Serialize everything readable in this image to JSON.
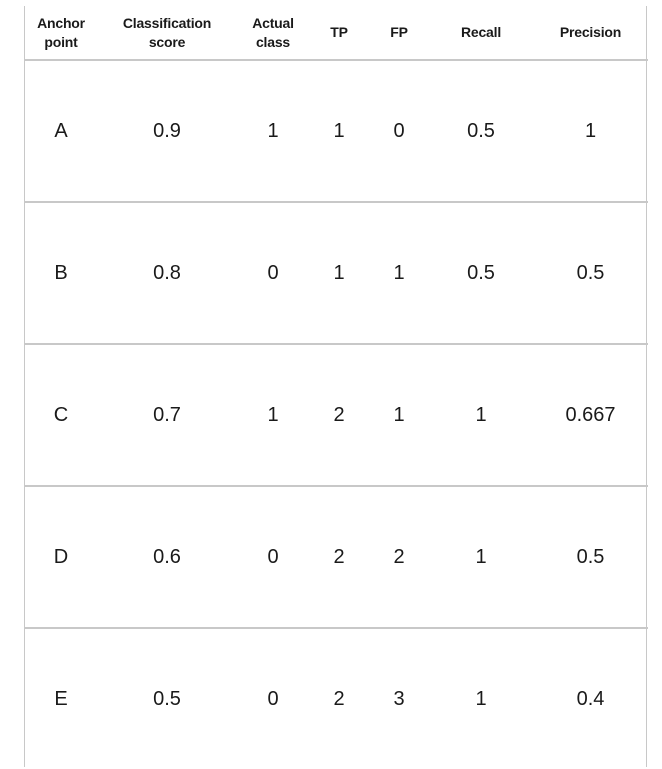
{
  "table": {
    "headers": [
      {
        "line1": "Anchor",
        "line2": "point"
      },
      {
        "line1": "Classification",
        "line2": "score"
      },
      {
        "line1": "Actual",
        "line2": "class"
      },
      {
        "line1": "TP",
        "line2": ""
      },
      {
        "line1": "FP",
        "line2": ""
      },
      {
        "line1": "Recall",
        "line2": ""
      },
      {
        "line1": "Precision",
        "line2": ""
      }
    ],
    "rows": [
      [
        "A",
        "0.9",
        "1",
        "1",
        "0",
        "0.5",
        "1"
      ],
      [
        "B",
        "0.8",
        "0",
        "1",
        "1",
        "0.5",
        "0.5"
      ],
      [
        "C",
        "0.7",
        "1",
        "2",
        "1",
        "1",
        "0.667"
      ],
      [
        "D",
        "0.6",
        "0",
        "2",
        "2",
        "1",
        "0.5"
      ],
      [
        "E",
        "0.5",
        "0",
        "2",
        "3",
        "1",
        "0.4"
      ]
    ]
  }
}
